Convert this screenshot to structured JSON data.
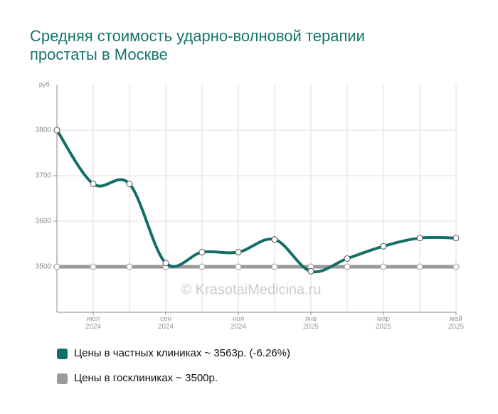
{
  "chart_data": {
    "type": "line",
    "title": "Средняя стоимость ударно-волновой терапии простаты в Москве",
    "y_label": "руб.",
    "watermark": "© KrasotaiMedicina.ru",
    "categories": [
      null,
      "июл 2024",
      null,
      "сен 2024",
      null,
      "ноя 2024",
      null,
      "янв 2025",
      null,
      "мар 2025",
      null,
      "май 2025"
    ],
    "series": [
      {
        "name": "Цены в частных клиниках ~ 3563р. (-6.26%)",
        "color": "#136e67",
        "values": [
          3800,
          3682,
          3682,
          3508,
          3532,
          3532,
          3560,
          3490,
          3518,
          3545,
          3563,
          3563
        ]
      },
      {
        "name": "Цены в госклиниках ~ 3500р.",
        "color": "#999999",
        "values": [
          3500,
          3500,
          3500,
          3500,
          3500,
          3500,
          3500,
          3500,
          3500,
          3500,
          3500,
          3500
        ]
      }
    ],
    "ylim": [
      3400,
      3900
    ],
    "yticks": [
      3500,
      3600,
      3700,
      3800
    ],
    "grid": true
  }
}
